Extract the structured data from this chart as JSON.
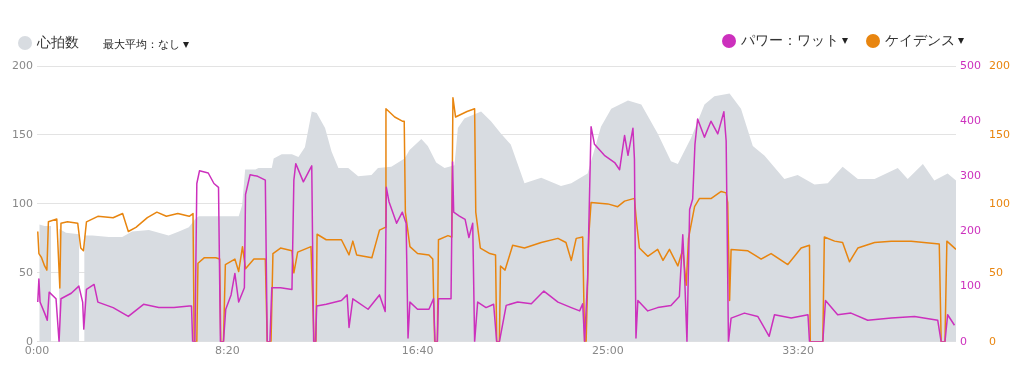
{
  "chart_data": {
    "type": "line",
    "legend": "top",
    "marker": "none",
    "grid": "y",
    "annotations": [
      "最大平均：なし"
    ],
    "xlim": [
      0,
      2415
    ],
    "xticks": [
      {
        "value": 0,
        "label": "0:00"
      },
      {
        "value": 500,
        "label": "8:20"
      },
      {
        "value": 1000,
        "label": "16:40"
      },
      {
        "value": 1500,
        "label": "25:00"
      },
      {
        "value": 2000,
        "label": "33:20"
      }
    ],
    "ylim": [
      0,
      200
    ],
    "yticks": [
      0,
      50,
      100,
      150,
      200
    ],
    "y2lim": [
      0,
      500
    ],
    "y2ticks": [
      0,
      100,
      200,
      300,
      400,
      500
    ],
    "y3lim": [
      0,
      200
    ],
    "y3ticks": [
      0,
      50,
      100,
      150,
      200
    ],
    "series": [
      {
        "name": "心拍数",
        "type": "area",
        "color": "#d8dce1",
        "axis": "y",
        "x": [
          6,
          20,
          37,
          41,
          45,
          53,
          58,
          76,
          111,
          117,
          124,
          146,
          189,
          224,
          250,
          294,
          320,
          346,
          373,
          399,
          416,
          425,
          495,
          530,
          539,
          547,
          574,
          582,
          617,
          622,
          643,
          670,
          687,
          704,
          722,
          735,
          757,
          774,
          792,
          818,
          844,
          879,
          896,
          931,
          966,
          979,
          1010,
          1027,
          1049,
          1071,
          1097,
          1106,
          1123,
          1167,
          1193,
          1219,
          1245,
          1281,
          1325,
          1377,
          1404,
          1447,
          1482,
          1509,
          1553,
          1588,
          1631,
          1666,
          1684,
          1719,
          1754,
          1780,
          1820,
          1850,
          1881,
          1912,
          1964,
          1999,
          2043,
          2078,
          2117,
          2157,
          2201,
          2262,
          2288,
          2328,
          2358,
          2393,
          2415
        ],
        "values": [
          85,
          84,
          84,
          null,
          84,
          null,
          82,
          79,
          78,
          null,
          77,
          77,
          76,
          76,
          80,
          81,
          79,
          77,
          80,
          83,
          89,
          91,
          91,
          91,
          99,
          125,
          125,
          126,
          126,
          133,
          136,
          136,
          134,
          141,
          167,
          166,
          155,
          138,
          126,
          126,
          120,
          121,
          126,
          127,
          133,
          139,
          147,
          142,
          130,
          126,
          128,
          155,
          162,
          167,
          160,
          151,
          143,
          115,
          119,
          113,
          115,
          122,
          156,
          169,
          175,
          172,
          151,
          131,
          129,
          148,
          172,
          178,
          180,
          169,
          142,
          135,
          118,
          121,
          114,
          115,
          127,
          118,
          118,
          126,
          118,
          129,
          117,
          122,
          117
        ]
      },
      {
        "name": "パワー：ワット",
        "color": "#cc30bd",
        "axis": "y2",
        "x": [
          2,
          5,
          8,
          20,
          27,
          32,
          50,
          58,
          63,
          90,
          110,
          120,
          123,
          130,
          150,
          160,
          200,
          240,
          280,
          320,
          360,
          400,
          406,
          409,
          415,
          420,
          427,
          450,
          465,
          477,
          482,
          490,
          496,
          510,
          520,
          530,
          545,
          548,
          560,
          580,
          600,
          605,
          612,
          617,
          640,
          670,
          675,
          680,
          700,
          715,
          722,
          727,
          732,
          735,
          760,
          800,
          815,
          820,
          830,
          870,
          900,
          915,
          918,
          925,
          945,
          960,
          970,
          975,
          980,
          1000,
          1030,
          1042,
          1046,
          1052,
          1055,
          1088,
          1092,
          1095,
          1110,
          1125,
          1135,
          1145,
          1150,
          1158,
          1180,
          1200,
          1208,
          1215,
          1233,
          1263,
          1299,
          1332,
          1369,
          1404,
          1426,
          1434,
          1439,
          1447,
          1456,
          1465,
          1491,
          1518,
          1531,
          1544,
          1553,
          1566,
          1570,
          1574,
          1579,
          1605,
          1631,
          1666,
          1688,
          1697,
          1701,
          1708,
          1715,
          1723,
          1729,
          1736,
          1754,
          1771,
          1789,
          1805,
          1811,
          1817,
          1824,
          1859,
          1894,
          1924,
          1938,
          1982,
          2026,
          2030,
          2065,
          2072,
          2104,
          2139,
          2183,
          2245,
          2306,
          2367,
          2376,
          2386,
          2393,
          2411
        ],
        "values": [
          72,
          114,
          72,
          52,
          39,
          90,
          78,
          0,
          78,
          88,
          101,
          72,
          23,
          95,
          104,
          72,
          62,
          46,
          68,
          62,
          62,
          65,
          65,
          0,
          0,
          287,
          310,
          306,
          287,
          280,
          0,
          0,
          59,
          85,
          124,
          72,
          98,
          267,
          303,
          300,
          293,
          0,
          0,
          98,
          98,
          95,
          293,
          323,
          290,
          310,
          319,
          0,
          0,
          65,
          68,
          75,
          85,
          26,
          78,
          59,
          85,
          55,
          280,
          254,
          215,
          235,
          215,
          7,
          72,
          59,
          59,
          78,
          0,
          0,
          78,
          78,
          326,
          235,
          228,
          222,
          189,
          215,
          0,
          72,
          62,
          68,
          0,
          0,
          66,
          72,
          69,
          92,
          72,
          62,
          56,
          69,
          0,
          115,
          390,
          358,
          338,
          325,
          312,
          374,
          338,
          387,
          331,
          7,
          75,
          56,
          62,
          66,
          82,
          194,
          135,
          0,
          240,
          259,
          358,
          404,
          371,
          400,
          377,
          417,
          364,
          0,
          43,
          52,
          46,
          10,
          49,
          43,
          49,
          0,
          0,
          75,
          49,
          52,
          39,
          43,
          46,
          39,
          0,
          0,
          49,
          30
        ]
      },
      {
        "name": "ケイデンス",
        "color": "#e8850f",
        "axis": "y3",
        "x": [
          2,
          5,
          12,
          20,
          26,
          30,
          52,
          60,
          63,
          80,
          107,
          115,
          122,
          130,
          160,
          200,
          225,
          240,
          260,
          290,
          315,
          340,
          370,
          400,
          410,
          413,
          420,
          423,
          440,
          470,
          480,
          483,
          490,
          495,
          520,
          530,
          540,
          548,
          570,
          600,
          605,
          615,
          620,
          640,
          670,
          675,
          685,
          720,
          728,
          733,
          736,
          760,
          800,
          820,
          830,
          840,
          880,
          900,
          915,
          917,
          940,
          960,
          965,
          968,
          980,
          1000,
          1030,
          1040,
          1045,
          1052,
          1055,
          1080,
          1090,
          1093,
          1100,
          1130,
          1150,
          1153,
          1165,
          1190,
          1205,
          1208,
          1215,
          1218,
          1230,
          1250,
          1281,
          1325,
          1369,
          1390,
          1404,
          1417,
          1434,
          1439,
          1443,
          1450,
          1456,
          1500,
          1526,
          1544,
          1570,
          1574,
          1583,
          1605,
          1631,
          1645,
          1662,
          1684,
          1697,
          1706,
          1712,
          1728,
          1741,
          1772,
          1798,
          1811,
          1815,
          1820,
          1824,
          1868,
          1903,
          1929,
          1973,
          2008,
          2030,
          2032,
          2065,
          2069,
          2096,
          2117,
          2135,
          2157,
          2201,
          2245,
          2297,
          2371,
          2376,
          2386,
          2391,
          2415
        ],
        "values": [
          80,
          64,
          61,
          55,
          52,
          87,
          89,
          39,
          86,
          87,
          86,
          68,
          66,
          87,
          91,
          90,
          93,
          80,
          83,
          90,
          94,
          91,
          93,
          91,
          93,
          0,
          0,
          57,
          61,
          61,
          60,
          0,
          0,
          56,
          60,
          51,
          69,
          53,
          60,
          60,
          0,
          0,
          64,
          68,
          66,
          50,
          65,
          69,
          0,
          0,
          78,
          74,
          74,
          63,
          73,
          63,
          61,
          81,
          83,
          169,
          163,
          160,
          160,
          94,
          69,
          64,
          63,
          60,
          0,
          0,
          74,
          77,
          76,
          177,
          163,
          167,
          169,
          94,
          68,
          64,
          63,
          0,
          0,
          55,
          52,
          70,
          68,
          72,
          75,
          72,
          59,
          75,
          76,
          0,
          0,
          77,
          101,
          100,
          98,
          102,
          104,
          91,
          68,
          62,
          67,
          59,
          67,
          55,
          67,
          41,
          75,
          98,
          104,
          104,
          109,
          108,
          101,
          30,
          67,
          66,
          60,
          64,
          56,
          68,
          70,
          0,
          0,
          76,
          73,
          72,
          58,
          68,
          72,
          73,
          73,
          71,
          0,
          0,
          73,
          67
        ]
      }
    ]
  }
}
